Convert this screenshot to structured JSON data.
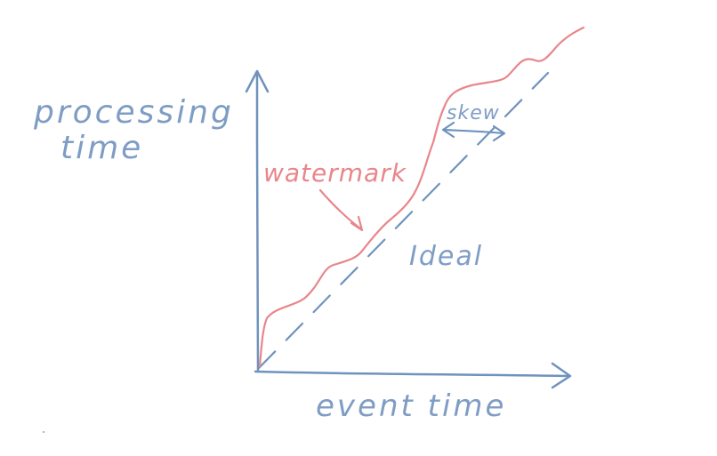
{
  "diagram": {
    "ylabel_line1": "processing",
    "ylabel_line2": "time",
    "xlabel": "event time",
    "watermark_label": "watermark",
    "ideal_label": "Ideal",
    "skew_label": "skew"
  },
  "colors": {
    "axis": "#6f93bd",
    "text_blue": "#7f9dc4",
    "watermark": "#e8868b",
    "ideal": "#6f93bd"
  }
}
